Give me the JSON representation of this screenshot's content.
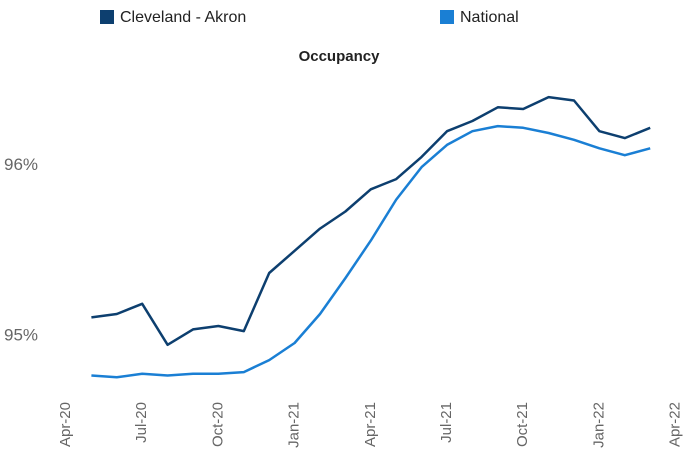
{
  "chart_data": {
    "type": "line",
    "title": "Occupancy",
    "categories": [
      "Apr-20",
      null,
      null,
      "Jul-20",
      null,
      null,
      "Oct-20",
      null,
      null,
      "Jan-21",
      null,
      null,
      "Apr-21",
      null,
      null,
      "Jul-21",
      null,
      null,
      "Oct-21",
      null,
      null,
      "Jan-22",
      null,
      null,
      "Apr-22"
    ],
    "series": [
      {
        "name": "Cleveland - Akron",
        "color": "#0d3f6f",
        "values": [
          null,
          95.11,
          95.13,
          95.19,
          94.95,
          95.04,
          95.06,
          95.03,
          95.37,
          95.5,
          95.63,
          95.73,
          95.86,
          95.92,
          96.05,
          96.2,
          96.26,
          96.34,
          96.33,
          96.4,
          96.38,
          96.2,
          96.16,
          96.22,
          null
        ]
      },
      {
        "name": "National",
        "color": "#1a7fd4",
        "values": [
          null,
          94.77,
          94.76,
          94.78,
          94.77,
          94.78,
          94.78,
          94.79,
          94.86,
          94.96,
          95.13,
          95.34,
          95.56,
          95.8,
          95.99,
          96.12,
          96.2,
          96.23,
          96.22,
          96.19,
          96.15,
          96.1,
          96.06,
          96.1,
          null
        ]
      }
    ],
    "ylim": [
      94.65,
      96.5
    ],
    "yticks": [
      {
        "value": 95,
        "label": "95%"
      },
      {
        "value": 96,
        "label": "96%"
      }
    ],
    "grid": false,
    "legend": "top"
  }
}
